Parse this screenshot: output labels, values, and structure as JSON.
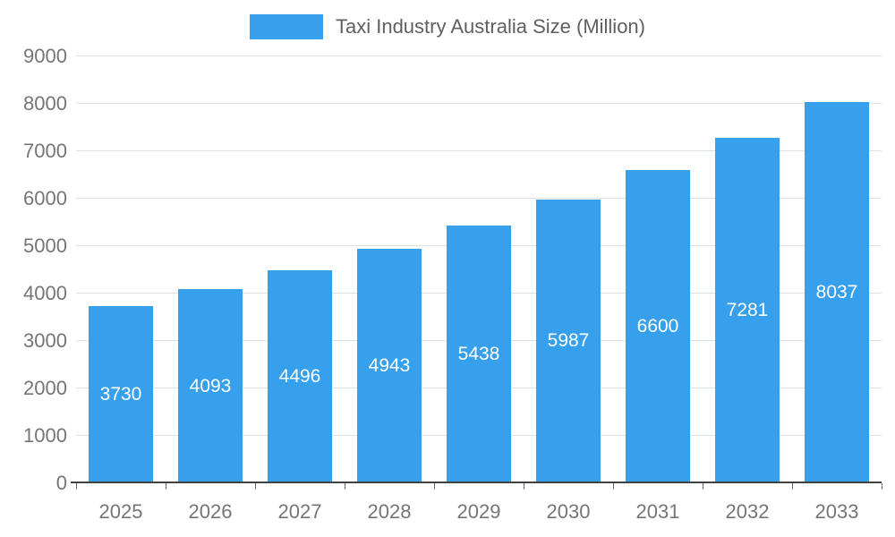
{
  "chart_data": {
    "type": "bar",
    "title": "Taxi Industry Australia Size (Million)",
    "legend": {
      "position": "top",
      "label": "Taxi Industry Australia Size (Million)"
    },
    "categories": [
      "2025",
      "2026",
      "2027",
      "2028",
      "2029",
      "2030",
      "2031",
      "2032",
      "2033"
    ],
    "values": [
      3730,
      4093,
      4496,
      4943,
      5438,
      5987,
      6600,
      7281,
      8037
    ],
    "xlabel": "",
    "ylabel": "",
    "ylim": [
      0,
      9000
    ],
    "yticks": [
      0,
      1000,
      2000,
      3000,
      4000,
      5000,
      6000,
      7000,
      8000,
      9000
    ],
    "grid": true,
    "value_labels_inside_bars": true,
    "colors": {
      "bar": "#36A0EC",
      "value_label": "#FFFFFF",
      "axis_text": "#757575",
      "gridline": "#E0E0E0",
      "baseline": "#424242",
      "legend_text": "#5F5F5F",
      "background": "#FFFFFF"
    }
  }
}
